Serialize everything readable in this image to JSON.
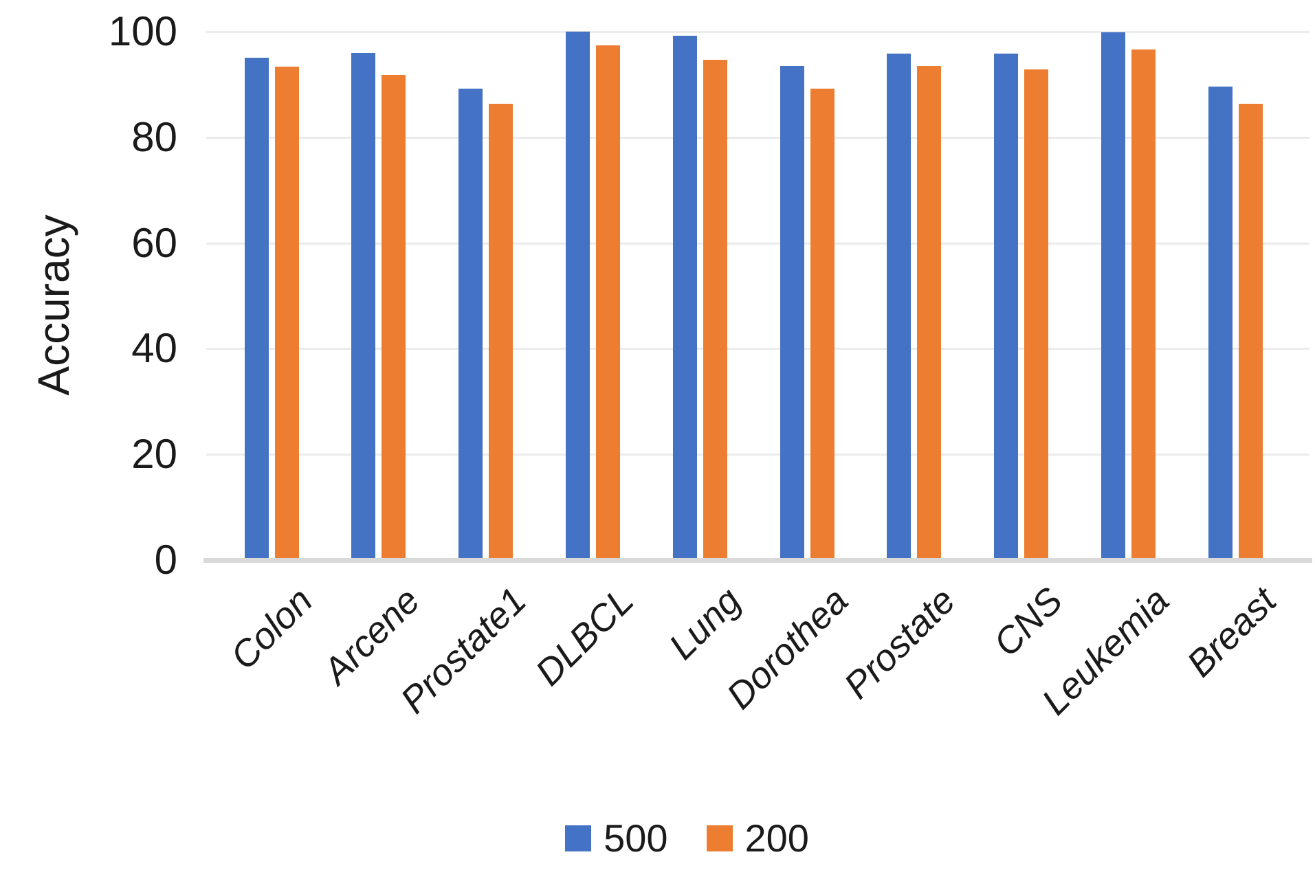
{
  "chart_data": {
    "type": "bar",
    "title": "",
    "xlabel": "",
    "ylabel": "Accuracy",
    "ylim": [
      0,
      100
    ],
    "yticks": [
      0,
      20,
      40,
      60,
      80,
      100
    ],
    "grid": "horizontal",
    "legend_position": "bottom",
    "categories": [
      "Colon",
      "Arcene",
      "Prostate1",
      "DLBCL",
      "Lung",
      "Dorothea",
      "Prostate",
      "CNS",
      "Leukemia",
      "Breast"
    ],
    "series": [
      {
        "name": "500",
        "color": "#4472C4",
        "values": [
          95.1,
          96.0,
          89.2,
          100,
          99.2,
          93.5,
          95.9,
          95.9,
          99.9,
          89.6
        ]
      },
      {
        "name": "200",
        "color": "#ED7D31",
        "values": [
          93.4,
          91.8,
          86.3,
          97.4,
          94.7,
          89.2,
          93.5,
          92.8,
          96.6,
          86.4
        ]
      }
    ],
    "style": {
      "text_color": "#1a1a1a",
      "gridline_color": "#ebebeb",
      "axis_line_color": "#d9d9d9",
      "background": "#ffffff"
    }
  }
}
